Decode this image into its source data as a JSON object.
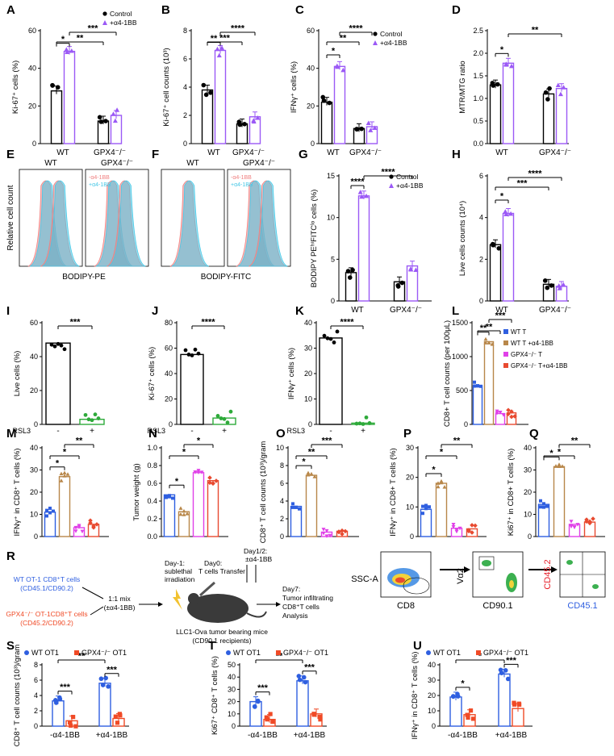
{
  "figure": {
    "panel_letters": [
      "A",
      "B",
      "C",
      "D",
      "E",
      "F",
      "G",
      "H",
      "I",
      "J",
      "K",
      "L",
      "M",
      "N",
      "O",
      "P",
      "Q",
      "R",
      "S",
      "T",
      "U"
    ]
  },
  "colors": {
    "control": "#000000",
    "a41bb": "#9b59f6",
    "red_hist": "#f08080",
    "blue_hist": "#45c7e6",
    "wt": "#2f5fe0",
    "wt_a41bb": "#b8874a",
    "gpx4": "#e040e8",
    "gpx4_a41bb": "#e84a30",
    "s_wt": "#2f5fe0",
    "s_gpx4": "#f04a26"
  },
  "legend_ab": {
    "control": "Control",
    "treat": "+α4-1BB"
  },
  "chart_data": [
    {
      "id": "A",
      "type": "bar",
      "ylabel": "Ki-67⁺ cells (%)",
      "ylim": [
        0,
        60
      ],
      "yticks": [
        0,
        20,
        40,
        60
      ],
      "groups": [
        "WT",
        "GPX4⁻/⁻"
      ],
      "series": [
        {
          "name": "Control",
          "values": [
            28,
            12
          ]
        },
        {
          "name": "+α4-1BB",
          "values": [
            49,
            15
          ]
        }
      ],
      "sig": [
        {
          "text": "*"
        },
        {
          "text": "**"
        },
        {
          "text": "***"
        }
      ],
      "legend": [
        "Control",
        "+α4-1BB"
      ]
    },
    {
      "id": "B",
      "type": "bar",
      "ylabel": "Ki-67⁺ cell counts (10³)",
      "ylim": [
        0,
        8
      ],
      "yticks": [
        0,
        2,
        4,
        6,
        8
      ],
      "groups": [
        "WT",
        "GPX4⁻/⁻"
      ],
      "series": [
        {
          "name": "Control",
          "values": [
            3.8,
            1.4
          ]
        },
        {
          "name": "+α4-1BB",
          "values": [
            6.6,
            1.9
          ]
        }
      ],
      "sig": [
        {
          "text": "**"
        },
        {
          "text": "***"
        },
        {
          "text": "****"
        }
      ]
    },
    {
      "id": "C",
      "type": "bar",
      "ylabel": "IFNγ⁺ cells (%)",
      "ylim": [
        0,
        60
      ],
      "yticks": [
        0,
        20,
        40,
        60
      ],
      "groups": [
        "WT",
        "GPX4⁻/⁻"
      ],
      "series": [
        {
          "name": "Control",
          "values": [
            22,
            8
          ]
        },
        {
          "name": "+α4-1BB",
          "values": [
            41,
            9
          ]
        }
      ],
      "sig": [
        {
          "text": "*"
        },
        {
          "text": "**"
        },
        {
          "text": "****"
        }
      ],
      "legend": [
        "Control",
        "+α4-1BB"
      ]
    },
    {
      "id": "D",
      "type": "bar",
      "ylabel": "MTR/MTG ratio",
      "ylim": [
        0,
        2.5
      ],
      "yticks": [
        0.0,
        0.5,
        1.0,
        1.5,
        2.0,
        2.5
      ],
      "groups": [
        "WT",
        "GPX4⁻/⁻"
      ],
      "series": [
        {
          "name": "Control",
          "values": [
            1.3,
            1.1
          ]
        },
        {
          "name": "+α4-1BB",
          "values": [
            1.78,
            1.22
          ]
        }
      ],
      "sig": [
        {
          "text": "*"
        },
        {
          "text": "**"
        }
      ]
    },
    {
      "id": "G",
      "type": "bar",
      "ylabel": "BODIPY PEʰⁱFITCˡᵒ cells (%)",
      "ylim": [
        0,
        15
      ],
      "yticks": [
        0,
        5,
        10,
        15
      ],
      "groups": [
        "WT",
        "GPX4⁻/⁻"
      ],
      "series": [
        {
          "name": "Control",
          "values": [
            3.4,
            2.3
          ]
        },
        {
          "name": "+α4-1BB",
          "values": [
            12.6,
            4.2
          ]
        }
      ],
      "sig": [
        {
          "text": "****"
        },
        {
          "text": "****"
        }
      ],
      "legend": [
        "Control",
        "+α4-1BB"
      ]
    },
    {
      "id": "H",
      "type": "bar",
      "ylabel": "Live cells counts (10⁴)",
      "ylim": [
        0,
        6
      ],
      "yticks": [
        0,
        2,
        4,
        6
      ],
      "groups": [
        "WT",
        "GPX4⁻/⁻"
      ],
      "series": [
        {
          "name": "Control",
          "values": [
            2.7,
            0.8
          ]
        },
        {
          "name": "+α4-1BB",
          "values": [
            4.2,
            0.7
          ]
        }
      ],
      "sig": [
        {
          "text": "*"
        },
        {
          "text": "***"
        },
        {
          "text": "****"
        }
      ]
    },
    {
      "id": "I",
      "type": "bar",
      "ylabel": "Live cells (%)",
      "ylim": [
        0,
        60
      ],
      "yticks": [
        0,
        20,
        40,
        60
      ],
      "categories": [
        "-",
        "+"
      ],
      "xlabel": "RSL3",
      "values": [
        48,
        3
      ],
      "sig": [
        {
          "text": "***"
        }
      ]
    },
    {
      "id": "J",
      "type": "bar",
      "ylabel": "Ki-67⁺ cells (%)",
      "ylim": [
        0,
        80
      ],
      "yticks": [
        0,
        20,
        40,
        60,
        80
      ],
      "categories": [
        "-",
        "+"
      ],
      "xlabel": "RSL3",
      "values": [
        55,
        5
      ],
      "sig": [
        {
          "text": "****"
        }
      ]
    },
    {
      "id": "K",
      "type": "bar",
      "ylabel": "IFNγ⁺ cells (%)",
      "ylim": [
        0,
        40
      ],
      "yticks": [
        0,
        10,
        20,
        30,
        40
      ],
      "categories": [
        "-",
        "+"
      ],
      "xlabel": "RSL3",
      "values": [
        34,
        0.5
      ],
      "sig": [
        {
          "text": "****"
        }
      ]
    },
    {
      "id": "L",
      "type": "bar",
      "ylabel": "CD8+ T cell counts (per 100μL)",
      "ylim": [
        0,
        1500
      ],
      "yticks": [
        0,
        500,
        1000,
        1500
      ],
      "categories": [
        "WT T",
        "WT T +α4-1BB",
        "GPX4⁻/⁻ T",
        "GPX4⁻/⁻ T+α4-1BB"
      ],
      "values": [
        570,
        1220,
        160,
        170
      ],
      "sig": [
        {
          "text": "**"
        },
        {
          "text": "**"
        },
        {
          "text": "***"
        }
      ],
      "legend": [
        "WT T",
        "WT T +α4-1BB",
        "GPX4⁻/⁻ T",
        "GPX4⁻/⁻ T+α4-1BB"
      ]
    },
    {
      "id": "M",
      "type": "bar",
      "ylabel": "IFNγ⁺ in CD8⁺ T cells (%)",
      "ylim": [
        0,
        40
      ],
      "yticks": [
        0,
        10,
        20,
        30,
        40
      ],
      "categories": [
        "WT T",
        "WT T +α4-1BB",
        "GPX4⁻/⁻ T",
        "GPX4⁻/⁻ T+α4-1BB"
      ],
      "values": [
        11,
        27,
        4,
        5.5
      ],
      "sig": [
        {
          "text": "*"
        },
        {
          "text": "*"
        },
        {
          "text": "**"
        }
      ]
    },
    {
      "id": "N",
      "type": "bar",
      "ylabel": "Tumor weight (g)",
      "ylim": [
        0,
        1.0
      ],
      "yticks": [
        0.0,
        0.2,
        0.4,
        0.6,
        0.8,
        1.0
      ],
      "categories": [
        "WT T",
        "WT T +α4-1BB",
        "GPX4⁻/⁻ T",
        "GPX4⁻/⁻ T+α4-1BB"
      ],
      "values": [
        0.47,
        0.28,
        0.72,
        0.63
      ],
      "sig": [
        {
          "text": "*"
        },
        {
          "text": "*"
        },
        {
          "text": "*"
        }
      ]
    },
    {
      "id": "O",
      "type": "bar",
      "ylabel": "CD8⁺ T cell counts (10³)/gram",
      "ylim": [
        0,
        10
      ],
      "yticks": [
        0,
        2,
        4,
        6,
        8,
        10
      ],
      "categories": [
        "WT T",
        "WT T +α4-1BB",
        "GPX4⁻/⁻ T",
        "GPX4⁻/⁻ T+α4-1BB"
      ],
      "values": [
        3.4,
        6.9,
        0.5,
        0.6
      ],
      "sig": [
        {
          "text": "*"
        },
        {
          "text": "**"
        },
        {
          "text": "***"
        }
      ]
    },
    {
      "id": "P",
      "type": "bar",
      "ylabel": "IFNγ⁺ in CD8+ T cells (%)",
      "ylim": [
        0,
        30
      ],
      "yticks": [
        0,
        10,
        20,
        30
      ],
      "categories": [
        "WT T",
        "WT T +α4-1BB",
        "GPX4⁻/⁻ T",
        "GPX4⁻/⁻ T+α4-1BB"
      ],
      "values": [
        9.2,
        18,
        2.8,
        2.6
      ],
      "sig": [
        {
          "text": "*"
        },
        {
          "text": "*"
        },
        {
          "text": "**"
        }
      ]
    },
    {
      "id": "Q",
      "type": "bar",
      "ylabel": "Ki67⁺ in CD8+ T cells (%)",
      "ylim": [
        0,
        40
      ],
      "yticks": [
        0,
        10,
        20,
        30,
        40
      ],
      "categories": [
        "WT T",
        "WT T +α4-1BB",
        "GPX4⁻/⁻ T",
        "GPX4⁻/⁻ T+α4-1BB"
      ],
      "values": [
        14.5,
        31.5,
        5.5,
        6.5
      ],
      "sig": [
        {
          "text": "*"
        },
        {
          "text": "*"
        },
        {
          "text": "**"
        }
      ]
    },
    {
      "id": "S",
      "type": "bar",
      "ylabel": "CD8⁺ T cell counts (10³)/gram",
      "ylim": [
        0,
        8
      ],
      "yticks": [
        0,
        2,
        4,
        6,
        8
      ],
      "groups": [
        "-α4-1BB",
        "+α4-1BB"
      ],
      "series": [
        {
          "name": "WT OT1",
          "values": [
            3.3,
            5.6
          ]
        },
        {
          "name": "GPX4⁻/⁻ OT1",
          "values": [
            0.7,
            1.0
          ]
        }
      ],
      "sig": [
        {
          "text": "***"
        },
        {
          "text": "***"
        },
        {
          "text": "**"
        }
      ],
      "legend": [
        "WT OT1",
        "GPX4⁻/⁻ OT1"
      ]
    },
    {
      "id": "T",
      "type": "bar",
      "ylabel": "Ki67⁺ CD8⁺ T cells (%)",
      "ylim": [
        0,
        50
      ],
      "yticks": [
        0,
        10,
        20,
        30,
        40,
        50
      ],
      "groups": [
        "-α4-1BB",
        "+α4-1BB"
      ],
      "series": [
        {
          "name": "WT OT1",
          "values": [
            20,
            37
          ]
        },
        {
          "name": "GPX4⁻/⁻ OT1",
          "values": [
            5.5,
            10
          ]
        }
      ],
      "sig": [
        {
          "text": "***"
        },
        {
          "text": "***"
        },
        {
          "text": "**"
        }
      ],
      "legend": [
        "WT OT1",
        "GPX4⁻/⁻ OT1"
      ]
    },
    {
      "id": "U",
      "type": "bar",
      "ylabel": "IFNγ⁺ in CD8⁺ T cells (%)",
      "ylim": [
        0,
        40
      ],
      "yticks": [
        0,
        10,
        20,
        30,
        40
      ],
      "groups": [
        "-α4-1BB",
        "+α4-1BB"
      ],
      "series": [
        {
          "name": "WT OT1",
          "values": [
            19,
            34
          ]
        },
        {
          "name": "GPX4⁻/⁻ OT1",
          "values": [
            7.5,
            11.5
          ]
        }
      ],
      "sig": [
        {
          "text": "*"
        },
        {
          "text": "***"
        },
        {
          "text": "*"
        }
      ],
      "legend": [
        "WT OT1",
        "GPX4⁻/⁻ OT1"
      ]
    }
  ],
  "histograms": {
    "E": {
      "titles": [
        "WT",
        "GPX4⁻/⁻"
      ],
      "ylabel": "Relative cell count",
      "xlabel": "BODIPY-PE",
      "legend": [
        "-α4-1BB",
        "+α4-1BB"
      ]
    },
    "F": {
      "titles": [
        "WT",
        "GPX4⁻/⁻"
      ],
      "xlabel": "BODIPY-FITC",
      "legend": [
        "-α4-1BB",
        "+α4-1BB"
      ]
    }
  },
  "schematic": {
    "wt_line1": "WT OT-1 CD8⁺T cells",
    "wt_line2": "(CD45.1/CD90.2)",
    "gpx_line1": "GPX4⁻/⁻ OT-1CD8⁺T cells",
    "gpx_line2": "(CD45.2/CD90.2)",
    "mix1": "1:1 mix",
    "mix2": "(±α4-1BB)",
    "day_1a": "Day-1:",
    "day_1b": "sublethal",
    "day_1c": "irradiation",
    "day0a": "Day0:",
    "day0b": "T cells Transfer",
    "day12a": "Day1/2:",
    "day12b": "±α4-1BB",
    "mouse1": "LLC1-Ova tumor bearing mice",
    "mouse2": "(CD90.1 recipients)",
    "day7a": "Day7:",
    "day7b": "Tumor infiltrating",
    "day7c": "CD8⁺T cells",
    "day7d": "Analysis",
    "flow1_y": "SSC-A",
    "flow1_x": "CD8",
    "flow2_y": "Vα2",
    "flow2_x": "CD90.1",
    "flow3_y": "CD45.2",
    "flow3_x": "CD45.1"
  }
}
